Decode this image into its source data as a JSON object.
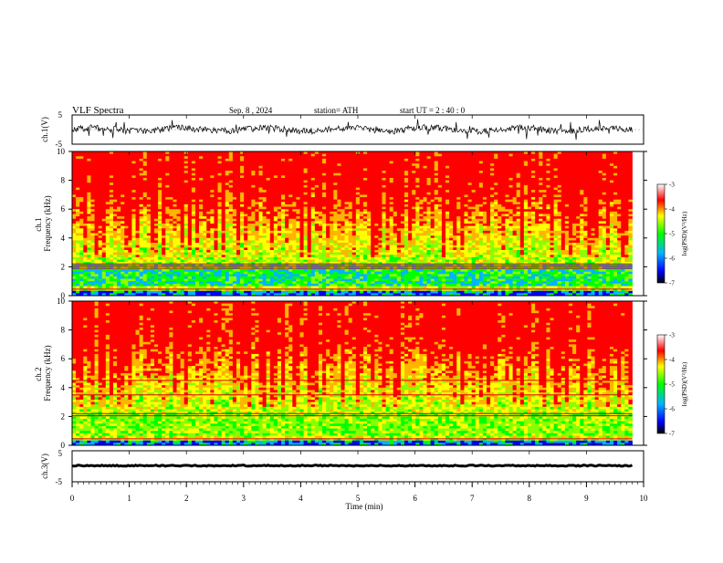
{
  "header": {
    "title": "VLF  Spectra",
    "date": "Sep. 8  , 2024",
    "station": "station= ATH",
    "start": "start  UT  =   2  : 40 : 0"
  },
  "colorbar": {
    "label": "log(PSD)(V²/Hz)",
    "ticks": [
      "-3",
      "-4",
      "-5",
      "-6",
      "-7"
    ],
    "stops": [
      "#000000",
      "#0000ff",
      "#00b4ff",
      "#00ff00",
      "#ffff00",
      "#ff0000",
      "#ffffff"
    ]
  },
  "chart_data": [
    {
      "type": "line",
      "id": "ch1-waveform",
      "ylabel": "ch.1(V)",
      "ylim": [
        -5,
        5
      ],
      "yticks": [
        "5",
        "-5"
      ],
      "xlim": [
        0,
        10
      ],
      "color": "#000000"
    },
    {
      "type": "heatmap",
      "id": "ch1-spectrogram",
      "ylabel": "ch.1\nFrequency  (kHz)",
      "ylim": [
        0,
        10
      ],
      "yticks": [
        "0",
        "2",
        "4",
        "6",
        "8",
        "10"
      ],
      "xlim": [
        0,
        10
      ],
      "data_end_min": 9.8,
      "value_range": [
        -7,
        -3
      ]
    },
    {
      "type": "heatmap",
      "id": "ch2-spectrogram",
      "ylabel": "ch.2\nFrequency  (kHz)",
      "ylim": [
        0,
        10
      ],
      "yticks": [
        "0",
        "2",
        "4",
        "6",
        "8",
        "10"
      ],
      "xlim": [
        0,
        10
      ],
      "data_end_min": 9.8,
      "value_range": [
        -7,
        -3
      ]
    },
    {
      "type": "line",
      "id": "ch3-waveform",
      "ylabel": "ch.3(V)",
      "ylim": [
        -5,
        5
      ],
      "yticks": [
        "5",
        "-5"
      ],
      "xlim": [
        0,
        10
      ],
      "xlabel": "Time  (min)",
      "xticks": [
        "0",
        "1",
        "2",
        "3",
        "4",
        "5",
        "6",
        "7",
        "8",
        "9",
        "10"
      ],
      "color": "#000000"
    }
  ]
}
